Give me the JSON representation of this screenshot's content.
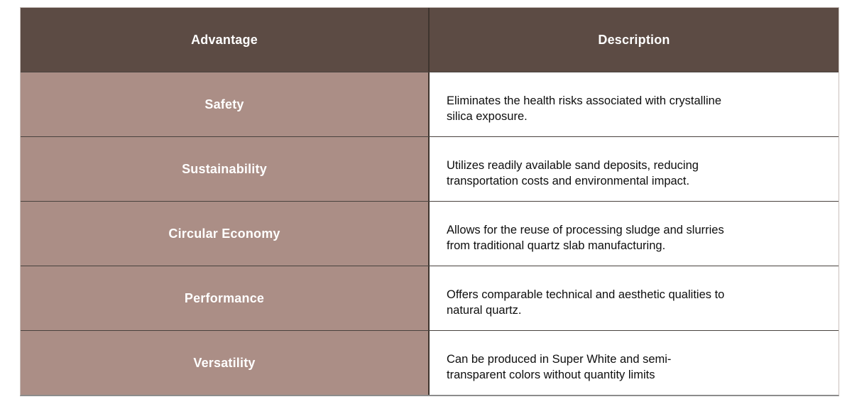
{
  "colors": {
    "header_bg": "#5c4b44",
    "header_text": "#ffffff",
    "advantage_bg": "#ab8e86",
    "advantage_text": "#ffffff",
    "description_bg": "#ffffff",
    "description_text": "#0e0e0e",
    "row_divider": "#49423e",
    "column_divider": "#3e342e",
    "outer_border": "#c9c1bd",
    "bottom_border": "#8c8c8c",
    "page_bg": "#ffffff"
  },
  "table": {
    "columns": [
      {
        "label": "Advantage"
      },
      {
        "label": "Description"
      }
    ],
    "rows": [
      {
        "advantage": "Safety",
        "description": "Eliminates the health risks associated with crystalline\nsilica exposure."
      },
      {
        "advantage": "Sustainability",
        "description": "Utilizes readily available sand deposits, reducing\ntransportation costs and environmental impact."
      },
      {
        "advantage": "Circular Economy",
        "description": "Allows for the reuse of processing sludge and slurries\nfrom traditional quartz slab manufacturing."
      },
      {
        "advantage": "Performance",
        "description": "Offers comparable technical and aesthetic qualities to\nnatural quartz."
      },
      {
        "advantage": "Versatility",
        "description": "Can be produced in Super White and semi-\ntransparent colors without quantity limits"
      }
    ]
  }
}
